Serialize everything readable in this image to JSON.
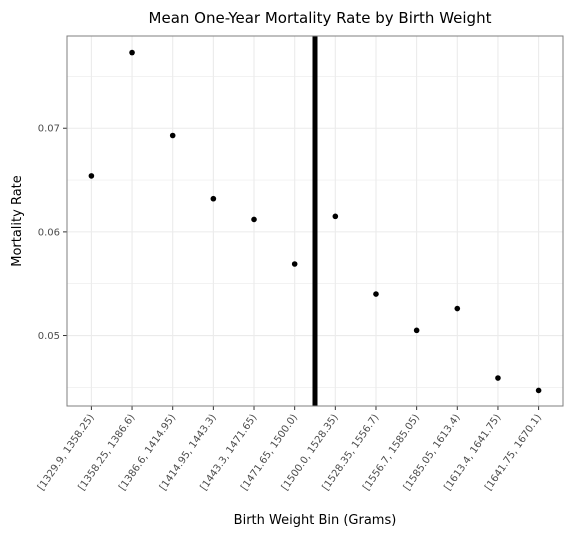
{
  "chart_data": {
    "type": "scatter",
    "title": "Mean One-Year Mortality Rate by Birth Weight",
    "xlabel": "Birth Weight Bin (Grams)",
    "ylabel": "Mortality Rate",
    "categories": [
      "[1329.9, 1358.25)",
      "[1358.25, 1386.6)",
      "[1386.6, 1414.95)",
      "[1414.95, 1443.3)",
      "[1443.3, 1471.65)",
      "[1471.65, 1500.0)",
      "[1500.0, 1528.35)",
      "[1528.35, 1556.7)",
      "[1556.7, 1585.05)",
      "[1585.05, 1613.4)",
      "[1613.4, 1641.75)",
      "[1641.75, 1670.1)"
    ],
    "values": [
      0.0654,
      0.0773,
      0.0693,
      0.0632,
      0.0612,
      0.0569,
      0.0615,
      0.054,
      0.0505,
      0.0526,
      0.0459,
      0.0447
    ],
    "ylim": [
      0.0432,
      0.0789
    ],
    "yticks": [
      0.05,
      0.06,
      0.07
    ],
    "ytick_labels": [
      "0.05",
      "0.06",
      "0.07"
    ],
    "cutoff_line": {
      "x": 1500.0
    },
    "grid": true,
    "colors": {
      "points": "#000000",
      "cutoff_line": "#000000",
      "grid": "#ebebeb",
      "panel_border": "#7f7f7f",
      "background": "#ffffff"
    }
  }
}
